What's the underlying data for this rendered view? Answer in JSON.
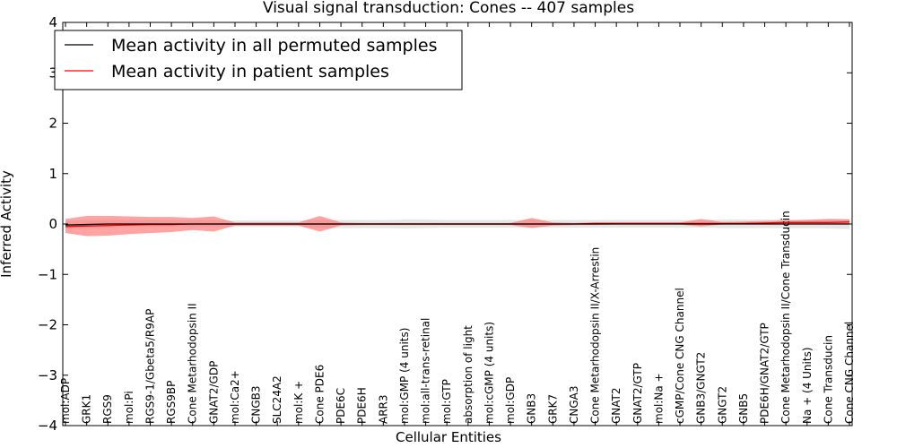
{
  "chart_data": {
    "type": "line",
    "title": "Visual signal transduction: Cones -- 407 samples",
    "xlabel": "Cellular Entities",
    "ylabel": "Inferred Activity",
    "ylim": [
      -4,
      4
    ],
    "yticks": [
      -4,
      -3,
      -2,
      -1,
      0,
      1,
      2,
      3,
      4
    ],
    "ytick_labels": [
      "−4",
      "−3",
      "−2",
      "−1",
      "0",
      "1",
      "2",
      "3",
      "4"
    ],
    "grid": false,
    "legend_position": "top-left",
    "categories": [
      "mol:ADP",
      "GRK1",
      "RGS9",
      "mol:Pi",
      "RGS9-1/Gbeta5/R9AP",
      "RGS9BP",
      "Cone Metarhodopsin II",
      "GNAT2/GDP",
      "mol:Ca2+",
      "CNGB3",
      "SLC24A2",
      "mol:K +",
      "Cone PDE6",
      "PDE6C",
      "PDE6H",
      "ARR3",
      "mol:GMP (4 units)",
      "mol:all-trans-retinal",
      "mol:GTP",
      "absorption of light",
      "mol:cGMP (4 units)",
      "mol:GDP",
      "GNB3",
      "GRK7",
      "CNGA3",
      "Cone Metarhodopsin II/X-Arrestin",
      "GNAT2",
      "GNAT2/GTP",
      "mol:Na +",
      "cGMP/Cone CNG Channel",
      "GNB3/GNGT2",
      "GNGT2",
      "GNB5",
      "PDE6H/GNAT2/GTP",
      "Cone Metarhodopsin II/Cone Transducin",
      "Na + (4 Units)",
      "Cone Transducin",
      "Cone CNG Channel"
    ],
    "series": [
      {
        "name": "Mean activity in all permuted samples",
        "color": "#000000",
        "values": [
          -0.02,
          -0.01,
          0,
          0,
          0,
          0,
          0,
          0,
          0,
          0,
          0,
          0,
          0,
          0,
          0,
          0,
          0,
          0,
          0,
          0,
          0,
          0,
          0,
          0,
          0,
          0,
          0,
          0,
          0,
          0,
          0,
          0,
          0,
          0,
          0,
          0,
          0,
          0
        ],
        "band_lower": [
          -0.1,
          -0.08,
          -0.07,
          -0.06,
          -0.06,
          -0.06,
          -0.06,
          -0.06,
          -0.06,
          -0.06,
          -0.06,
          -0.06,
          -0.08,
          -0.08,
          -0.08,
          -0.08,
          -0.09,
          -0.08,
          -0.07,
          -0.07,
          -0.07,
          -0.07,
          -0.07,
          -0.07,
          -0.07,
          -0.07,
          -0.07,
          -0.07,
          -0.07,
          -0.07,
          -0.07,
          -0.08,
          -0.08,
          -0.08,
          -0.08,
          -0.08,
          -0.09,
          -0.1
        ],
        "band_upper": [
          0.06,
          0.08,
          0.08,
          0.08,
          0.08,
          0.08,
          0.08,
          0.08,
          0.07,
          0.07,
          0.07,
          0.07,
          0.08,
          0.08,
          0.08,
          0.08,
          0.09,
          0.09,
          0.08,
          0.08,
          0.08,
          0.08,
          0.08,
          0.08,
          0.08,
          0.08,
          0.08,
          0.08,
          0.08,
          0.08,
          0.08,
          0.09,
          0.09,
          0.09,
          0.09,
          0.09,
          0.1,
          0.11
        ],
        "band_color": "#dddddd"
      },
      {
        "name": "Mean activity in patient samples",
        "color": "#ff0000",
        "values": [
          -0.05,
          -0.04,
          -0.03,
          -0.02,
          -0.01,
          -0.01,
          0,
          0,
          0,
          0,
          0,
          0,
          0,
          0,
          0,
          0,
          0,
          0,
          0,
          0,
          0,
          0,
          0,
          0,
          0,
          0.01,
          0.01,
          0.01,
          0.01,
          0.01,
          0.01,
          0.01,
          0.01,
          0.02,
          0.03,
          0.03,
          0.03,
          0.04
        ],
        "band_lower": [
          -0.18,
          -0.24,
          -0.23,
          -0.2,
          -0.18,
          -0.16,
          -0.12,
          -0.15,
          -0.03,
          -0.03,
          -0.03,
          -0.03,
          -0.15,
          -0.03,
          -0.02,
          -0.02,
          -0.02,
          -0.02,
          -0.02,
          -0.02,
          -0.02,
          -0.02,
          -0.08,
          -0.03,
          -0.02,
          -0.02,
          -0.01,
          -0.01,
          -0.01,
          -0.01,
          -0.05,
          -0.01,
          -0.01,
          0,
          0,
          0,
          -0.01,
          -0.01
        ],
        "band_upper": [
          0.1,
          0.16,
          0.16,
          0.15,
          0.14,
          0.14,
          0.12,
          0.15,
          0.03,
          0.03,
          0.03,
          0.03,
          0.16,
          0.03,
          0.02,
          0.02,
          0.02,
          0.02,
          0.02,
          0.02,
          0.02,
          0.02,
          0.12,
          0.03,
          0.02,
          0.03,
          0.03,
          0.03,
          0.03,
          0.03,
          0.1,
          0.04,
          0.05,
          0.06,
          0.07,
          0.08,
          0.1,
          0.09
        ],
        "band_color": "#ff6666"
      }
    ]
  }
}
